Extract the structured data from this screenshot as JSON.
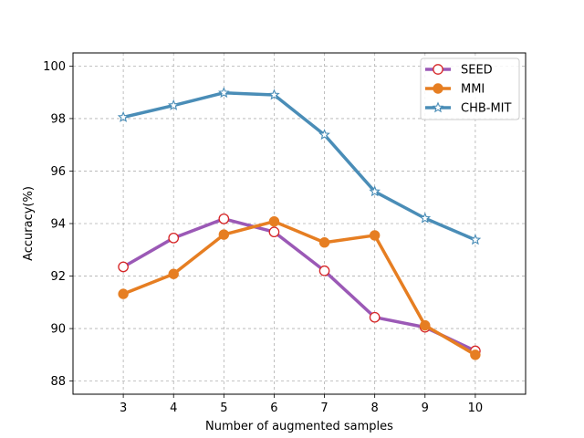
{
  "chart_data": {
    "type": "line",
    "title": "",
    "xlabel": "Number of augmented samples",
    "ylabel": "Accuracy(%)",
    "x": [
      3,
      4,
      5,
      6,
      7,
      8,
      9,
      10
    ],
    "xlim": [
      2,
      11
    ],
    "ylim": [
      87.5,
      100.5
    ],
    "xticks": [
      3,
      4,
      5,
      6,
      7,
      8,
      9,
      10
    ],
    "yticks": [
      88,
      90,
      92,
      94,
      96,
      98,
      100
    ],
    "grid": true,
    "legend_position": "top-right",
    "series": [
      {
        "name": "SEED",
        "color": "#9b59b6",
        "marker": "circle-open",
        "values": [
          92.35,
          93.45,
          94.18,
          93.68,
          92.2,
          90.43,
          90.05,
          89.15
        ]
      },
      {
        "name": "MMI",
        "color": "#e67e22",
        "marker": "circle-filled",
        "values": [
          91.32,
          92.08,
          93.58,
          94.08,
          93.28,
          93.55,
          90.12,
          89.0
        ]
      },
      {
        "name": "CHB-MIT",
        "color": "#4a8db7",
        "marker": "star-open",
        "values": [
          98.05,
          98.5,
          98.98,
          98.9,
          97.38,
          95.22,
          94.2,
          93.38
        ]
      }
    ]
  }
}
